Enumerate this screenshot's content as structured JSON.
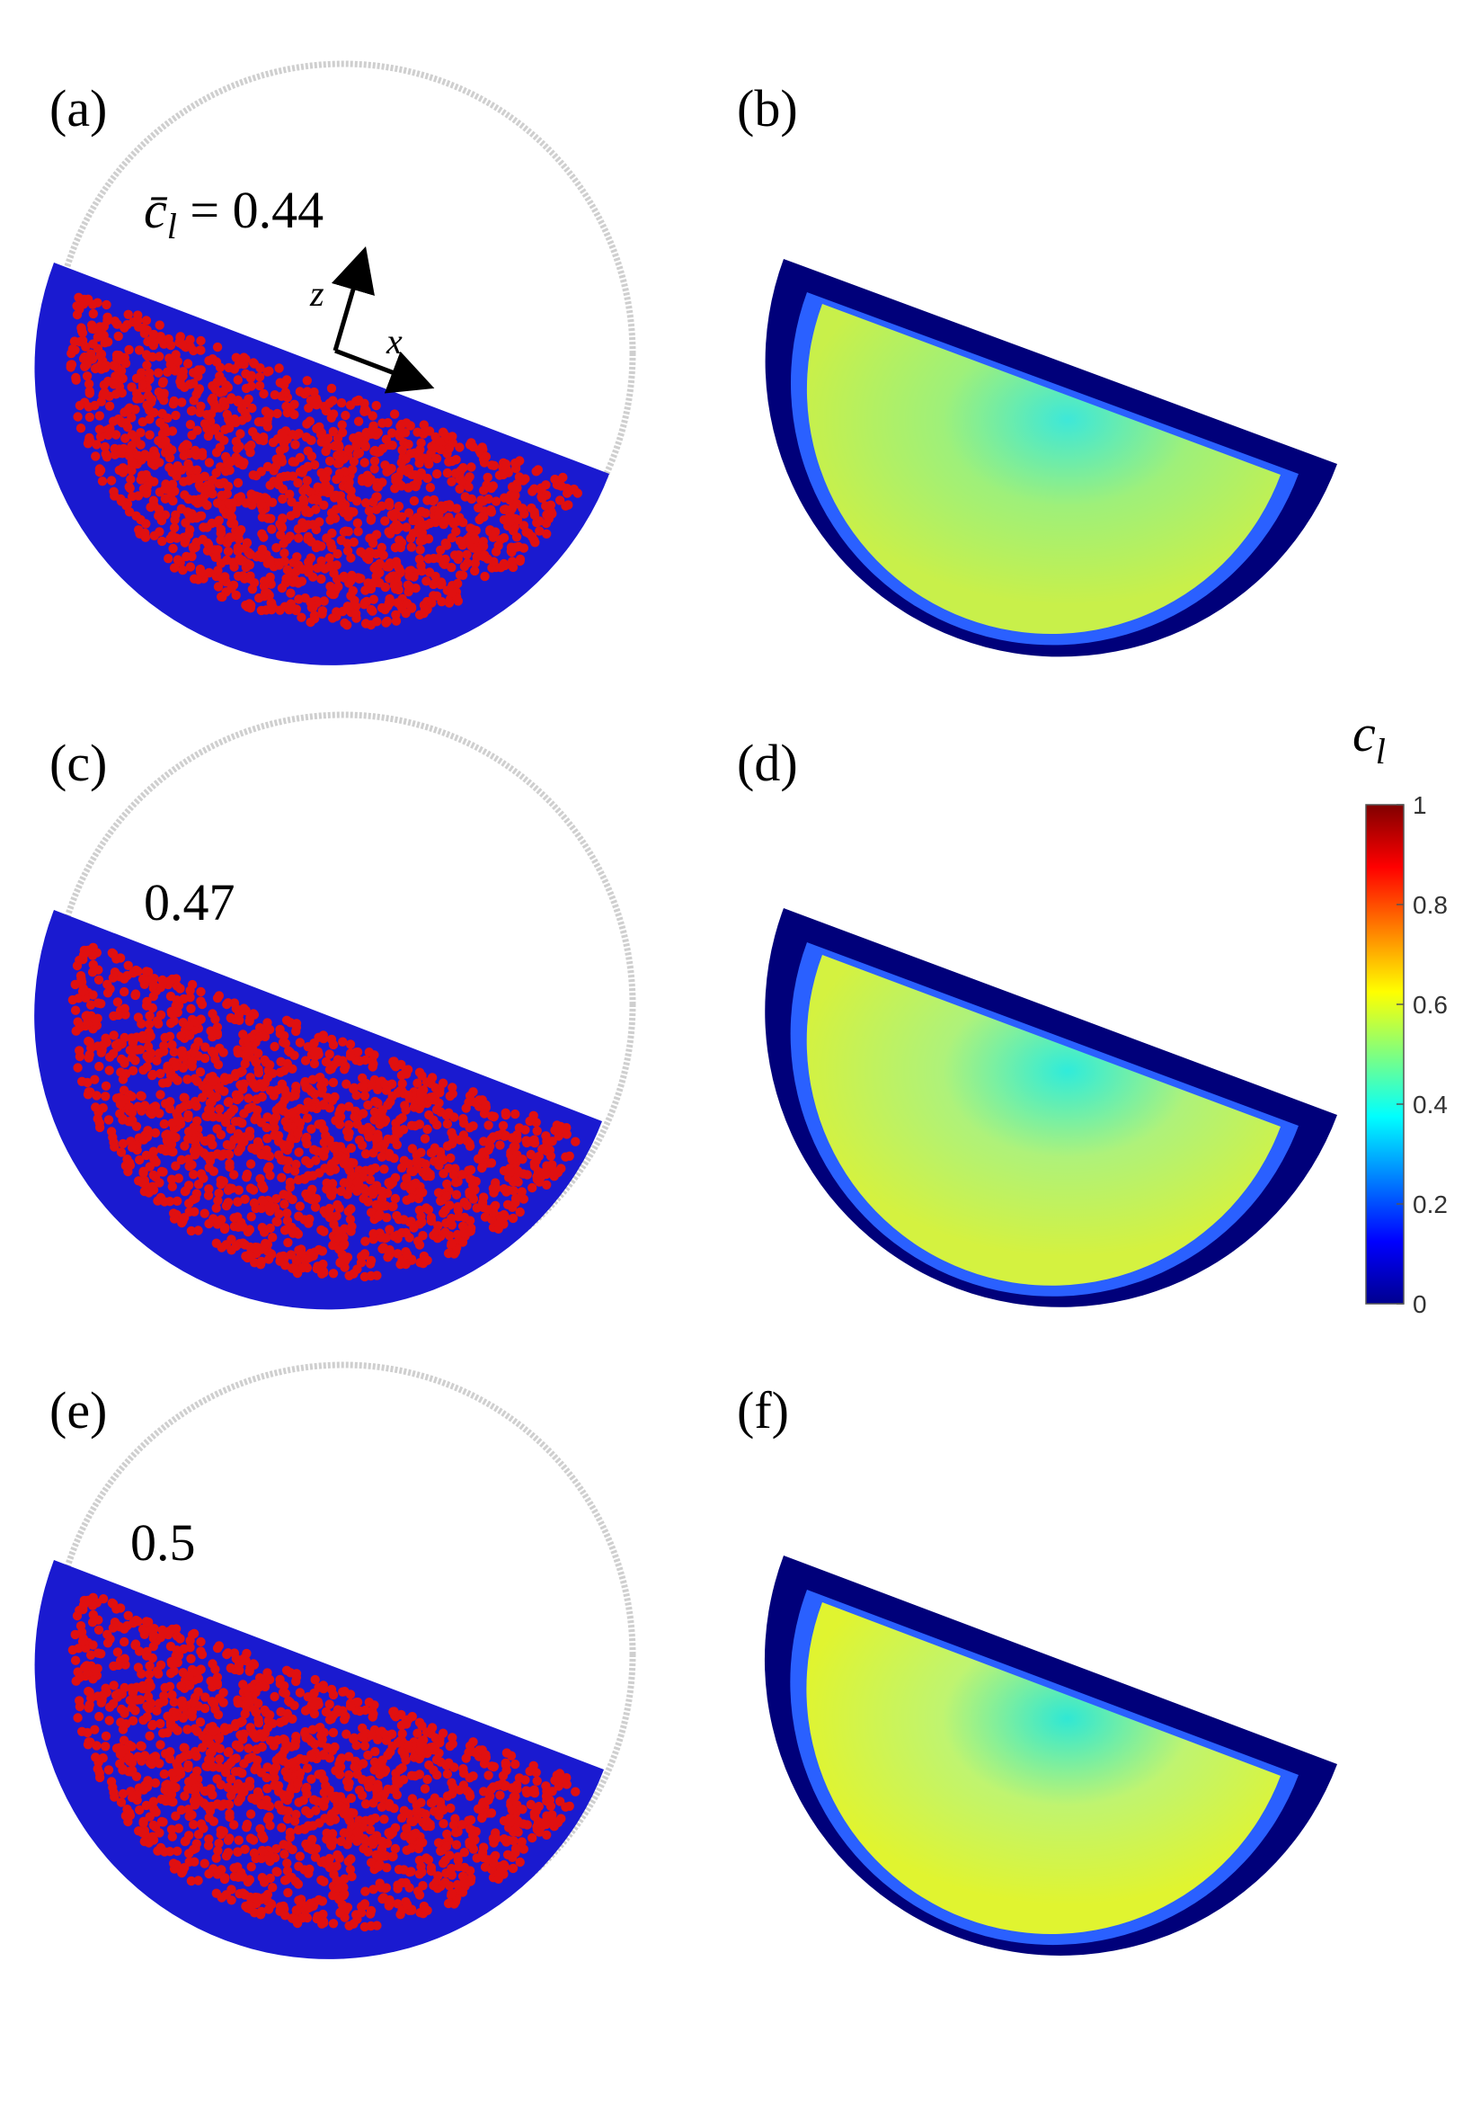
{
  "panels": [
    {
      "label": "(a)",
      "type": "particles",
      "concentration": "0.44",
      "prefix": "c̄",
      "subscript": "l",
      "equals": " = "
    },
    {
      "label": "(b)",
      "type": "heatmap"
    },
    {
      "label": "(c)",
      "type": "particles",
      "concentration": "0.47"
    },
    {
      "label": "(d)",
      "type": "heatmap"
    },
    {
      "label": "(e)",
      "type": "particles",
      "concentration": "0.5"
    },
    {
      "label": "(f)",
      "type": "heatmap"
    }
  ],
  "axes": {
    "z": "z",
    "x": "x"
  },
  "colorbar": {
    "symbol": "c",
    "subscript": "l",
    "ticks": [
      "1",
      "0.8",
      "0.6",
      "0.4",
      "0.2",
      "0"
    ]
  },
  "colors": {
    "large_particle": "#e01010",
    "small_particle": "#1a1ad0",
    "drum_outline": "#cfcfcf",
    "heat_edge": "#00007a",
    "heat_core": "#c8f04a"
  }
}
